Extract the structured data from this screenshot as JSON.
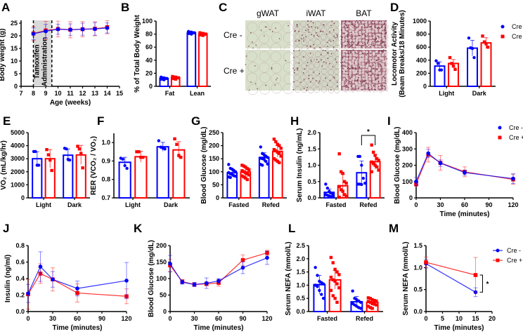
{
  "colors": {
    "cre_minus": "#0000FF",
    "cre_plus": "#FF0000"
  },
  "histology": {
    "panel": "C",
    "columns": [
      "gWAT",
      "iWAT",
      "BAT"
    ],
    "rows": [
      "Cre -",
      "Cre +"
    ]
  },
  "chart_data": [
    {
      "panel": "A",
      "type": "line",
      "xlabel": "Age (weeks)",
      "ylabel": "Body weight (g)",
      "xlim": [
        7,
        15
      ],
      "xticks": [
        7,
        8,
        9,
        10,
        11,
        12,
        13,
        14,
        15
      ],
      "ylim": [
        0,
        25
      ],
      "yticks": [
        0,
        5,
        10,
        15,
        20,
        25
      ],
      "shade": {
        "from": 8,
        "to": 9.5,
        "label": [
          "Tamoxifen",
          "Administration"
        ]
      },
      "x": [
        8,
        9,
        10,
        11,
        12,
        13,
        14
      ],
      "series": [
        {
          "marker": "square",
          "color": "#FF0000",
          "mean": [
            20.9,
            22.1,
            22.7,
            22.4,
            22.6,
            22.8,
            23.4
          ],
          "sd": [
            2.8,
            3.6,
            3.1,
            3.2,
            3.0,
            2.8,
            2.6
          ]
        },
        {
          "marker": "circle",
          "color": "#0000FF",
          "mean": [
            20.8,
            21.8,
            22.6,
            22.4,
            22.6,
            22.7,
            23.1
          ],
          "sd": [
            2.3,
            2.7,
            2.0,
            2.3,
            2.4,
            2.5,
            2.0
          ]
        }
      ]
    },
    {
      "panel": "B",
      "type": "bar",
      "ylabel": "% of Total Body Weight",
      "categories": [
        "Fat",
        "Lean"
      ],
      "ylim": [
        0,
        100
      ],
      "yticks": [
        0,
        20,
        40,
        60,
        80,
        100
      ],
      "series": [
        {
          "marker": "circle",
          "color": "#0000FF",
          "mean": [
            12,
            82
          ],
          "sd": [
            1.5,
            1.3
          ],
          "points": [
            [
              14,
              13,
              13,
              12,
              12,
              11,
              11,
              10
            ],
            [
              84,
              83,
              83,
              82,
              82,
              81,
              81,
              80
            ]
          ]
        },
        {
          "marker": "square",
          "color": "#FF0000",
          "mean": [
            13,
            80
          ],
          "sd": [
            1.5,
            1.5
          ],
          "points": [
            [
              15,
              14,
              14,
              13,
              13,
              12,
              12,
              11
            ],
            [
              82,
              81,
              81,
              80,
              80,
              79,
              79,
              78
            ]
          ]
        }
      ]
    },
    {
      "panel": "D",
      "type": "bar",
      "ylabel": "Locomotor Activity",
      "ylabel2": "(Beam Breaks/18 Minutes)",
      "categories": [
        "Light",
        "Dark"
      ],
      "ylim": [
        0,
        1000
      ],
      "yticks": [
        0,
        200,
        400,
        600,
        800,
        1000
      ],
      "legend": "marker",
      "series": [
        {
          "name": "Cre -",
          "marker": "circle",
          "color": "#0000FF",
          "mean": [
            310,
            585
          ],
          "sd": [
            65,
            120
          ],
          "points": [
            [
              390,
              350,
              250,
              250
            ],
            [
              740,
              590,
              580,
              440
            ]
          ]
        },
        {
          "name": "Cre +",
          "marker": "square",
          "color": "#FF0000",
          "mean": [
            350,
            665
          ],
          "sd": [
            60,
            80
          ],
          "points": [
            [
              440,
              350,
              310,
              260
            ],
            [
              770,
              680,
              650,
              600
            ]
          ]
        }
      ]
    },
    {
      "panel": "E",
      "type": "bar",
      "ylabel": "VO₂ (mL/kg/hr)",
      "categories": [
        "Light",
        "Dark"
      ],
      "ylim": [
        0,
        5000
      ],
      "yticks": [
        0,
        1000,
        2000,
        3000,
        4000,
        5000
      ],
      "series": [
        {
          "marker": "circle",
          "color": "#0000FF",
          "mean": [
            3000,
            3270
          ],
          "sd": [
            530,
            480
          ],
          "points": [
            [
              3550,
              3550,
              2500,
              2500
            ],
            [
              3800,
              3750,
              2950,
              2900
            ]
          ]
        },
        {
          "marker": "square",
          "color": "#FF0000",
          "mean": [
            3000,
            3290
          ],
          "sd": [
            700,
            730
          ],
          "points": [
            [
              3700,
              3300,
              2900,
              2100
            ],
            [
              3950,
              3750,
              3400,
              2300
            ]
          ]
        }
      ]
    },
    {
      "panel": "F",
      "type": "bar",
      "ylabel": "RER (VCO₂ / VO₂)",
      "categories": [
        "Light",
        "Dark"
      ],
      "ylim": [
        0.7,
        1.05
      ],
      "yticks": [
        0.7,
        0.8,
        0.9,
        1.0
      ],
      "tickdec": 1,
      "series": [
        {
          "marker": "circle",
          "color": "#0000FF",
          "mean": [
            0.893,
            0.977
          ],
          "sd": [
            0.027,
            0.024
          ],
          "points": [
            [
              0.915,
              0.91,
              0.875,
              0.86
            ],
            [
              1.01,
              0.975,
              0.97,
              0.965
            ]
          ]
        },
        {
          "marker": "square",
          "color": "#FF0000",
          "mean": [
            0.923,
            0.96
          ],
          "sd": [
            0.03,
            0.045
          ],
          "points": [
            [
              0.95,
              0.95,
              0.92,
              0.92
            ],
            [
              1.02,
              0.99,
              0.93,
              0.92
            ]
          ]
        }
      ]
    },
    {
      "panel": "G",
      "type": "bar",
      "ylabel": "Blood Glucose (mg/dL)",
      "categories": [
        "Fasted",
        "Refed"
      ],
      "ylim": [
        0,
        250
      ],
      "yticks": [
        0,
        50,
        100,
        150,
        200,
        250
      ],
      "series": [
        {
          "marker": "circle",
          "color": "#0000FF",
          "mean": [
            96,
            155
          ],
          "sd": [
            15,
            18
          ],
          "points": [
            [
              128,
              113,
              110,
              105,
              100,
              97,
              92,
              90,
              85,
              83,
              80,
              78
            ],
            [
              195,
              170,
              165,
              160,
              155,
              152,
              150,
              148,
              140,
              130,
              128,
              125
            ]
          ]
        },
        {
          "marker": "square",
          "color": "#FF0000",
          "mean": [
            99,
            178
          ],
          "sd": [
            17,
            22
          ],
          "points": [
            [
              125,
              122,
              118,
              112,
              108,
              104,
              100,
              96,
              92,
              88,
              84,
              80,
              76,
              70
            ],
            [
              225,
              215,
              205,
              200,
              190,
              185,
              180,
              175,
              170,
              160,
              150,
              145,
              140,
              135
            ]
          ]
        }
      ]
    },
    {
      "panel": "H",
      "type": "bar",
      "ylabel": "Serum Insulin (ng/mL)",
      "categories": [
        "Fasted",
        "Refed"
      ],
      "ylim": [
        0,
        2
      ],
      "yticks": [
        0,
        0.5,
        1.0,
        1.5,
        2.0
      ],
      "tickdec": 1,
      "significance": {
        "category": 1,
        "label": "*"
      },
      "series": [
        {
          "marker": "circle",
          "color": "#0000FF",
          "mean": [
            0.17,
            0.77
          ],
          "sd": [
            0.1,
            0.36
          ],
          "points": [
            [
              0.42,
              0.3,
              0.2,
              0.15,
              0.12,
              0.1,
              0.08,
              0.05,
              0.04,
              0.03
            ],
            [
              1.27,
              1.27,
              1.0,
              0.6,
              0.45,
              0.42,
              0.42,
              0.41
            ]
          ]
        },
        {
          "marker": "square",
          "color": "#FF0000",
          "mean": [
            0.37,
            1.11
          ],
          "sd": [
            0.35,
            0.22
          ],
          "points": [
            [
              1.35,
              0.8,
              0.75,
              0.5,
              0.45,
              0.35,
              0.25,
              0.2,
              0.1,
              0.05,
              0.02
            ],
            [
              1.62,
              1.4,
              1.3,
              1.2,
              1.15,
              1.1,
              1.05,
              1.0,
              0.95,
              0.85,
              0.8
            ]
          ]
        }
      ]
    },
    {
      "panel": "I",
      "type": "line",
      "xlabel": "Time (minutes)",
      "ylabel": "Blood Glucose (mg/dL)",
      "xlim": [
        0,
        120
      ],
      "xticks": [
        0,
        30,
        60,
        90,
        120
      ],
      "ylim": [
        0,
        400
      ],
      "yticks": [
        0,
        100,
        200,
        300,
        400
      ],
      "legend": "marker",
      "x": [
        0,
        15,
        30,
        60,
        120
      ],
      "series": [
        {
          "name": "Cre +",
          "marker": "square",
          "color": "#FF0000",
          "mean": [
            85,
            265,
            215,
            160,
            113
          ],
          "sd": [
            15,
            45,
            45,
            30,
            30
          ]
        },
        {
          "name": "Cre -",
          "marker": "circle",
          "color": "#0000FF",
          "mean": [
            100,
            273,
            213,
            155,
            118
          ],
          "sd": [
            25,
            25,
            20,
            15,
            30
          ]
        }
      ]
    },
    {
      "panel": "J",
      "type": "line",
      "xlabel": "Time (minutes)",
      "ylabel": "Insulin (ng/ml)",
      "xlim": [
        0,
        120
      ],
      "xticks": [
        0,
        30,
        60,
        90,
        120
      ],
      "ylim": [
        0,
        0.8
      ],
      "yticks": [
        0,
        0.2,
        0.4,
        0.6,
        0.8
      ],
      "tickdec": 1,
      "x": [
        0,
        15,
        30,
        60,
        120
      ],
      "series": [
        {
          "marker": "square",
          "color": "#FF0000",
          "mean": [
            0.21,
            0.46,
            0.39,
            0.225,
            0.185
          ],
          "sd": [
            0.18,
            0.12,
            0.14,
            0.11,
            0.09
          ]
        },
        {
          "marker": "circle",
          "color": "#0000FF",
          "mean": [
            0.22,
            0.545,
            0.39,
            0.28,
            0.375
          ],
          "sd": [
            0.11,
            0.18,
            0.095,
            0.09,
            0.22
          ]
        }
      ]
    },
    {
      "panel": "K",
      "type": "line",
      "xlabel": "Time (minutes)",
      "ylabel": "Blood Glucose (mg/dL)",
      "xlim": [
        0,
        120
      ],
      "xticks": [
        0,
        30,
        60,
        90,
        120
      ],
      "ylim": [
        0,
        200
      ],
      "yticks": [
        0,
        50,
        100,
        150,
        200
      ],
      "x": [
        0,
        15,
        30,
        45,
        60,
        90,
        120
      ],
      "series": [
        {
          "marker": "square",
          "color": "#FF0000",
          "mean": [
            140,
            91,
            82,
            84,
            87,
            156,
            178
          ],
          "sd": [
            18,
            6,
            6,
            6,
            10,
            16,
            8
          ]
        },
        {
          "marker": "circle",
          "color": "#0000FF",
          "mean": [
            145,
            89,
            82,
            86,
            93,
            133,
            163
          ],
          "sd": [
            25,
            6,
            6,
            16,
            7,
            18,
            20
          ]
        }
      ]
    },
    {
      "panel": "L",
      "type": "bar",
      "ylabel": "Serum NEFA (mmol/L)",
      "categories": [
        "Fasted",
        "Refed"
      ],
      "ylim": [
        0,
        2.5
      ],
      "yticks": [
        0,
        0.5,
        1.0,
        1.5,
        2.0,
        2.5
      ],
      "tickdec": 1,
      "series": [
        {
          "marker": "circle",
          "color": "#0000FF",
          "mean": [
            1.02,
            0.37
          ],
          "sd": [
            0.35,
            0.2
          ],
          "points": [
            [
              1.67,
              1.37,
              1.15,
              1.1,
              1.05,
              1.0,
              0.95,
              0.8,
              0.65,
              0.5
            ],
            [
              0.78,
              0.5,
              0.45,
              0.4,
              0.35,
              0.3,
              0.25,
              0.2,
              0.15,
              0.12
            ]
          ]
        },
        {
          "marker": "square",
          "color": "#FF0000",
          "mean": [
            1.2,
            0.35
          ],
          "sd": [
            0.35,
            0.1
          ],
          "points": [
            [
              2.05,
              1.85,
              1.6,
              1.5,
              1.4,
              1.3,
              1.2,
              1.15,
              1.05,
              0.9,
              0.8,
              0.6,
              0.5,
              0.35
            ],
            [
              0.52,
              0.5,
              0.45,
              0.42,
              0.4,
              0.38,
              0.35,
              0.3,
              0.28,
              0.25,
              0.2,
              0.15,
              0.12
            ]
          ]
        }
      ]
    },
    {
      "panel": "M",
      "type": "line",
      "xlabel": "Time (minutes)",
      "ylabel": "Serum NEFA (mmol/L)",
      "xlim": [
        0,
        20
      ],
      "xticks": [
        0,
        5,
        10,
        15,
        20
      ],
      "ylim": [
        0,
        1.5
      ],
      "yticks": [
        0,
        0.5,
        1.0,
        1.5
      ],
      "tickdec": 1,
      "legend": "line",
      "significance": {
        "x": 15,
        "label": "*"
      },
      "x": [
        0,
        15
      ],
      "series": [
        {
          "name": "Cre -",
          "marker": "circle",
          "color": "#0000FF",
          "mean": [
            1.09,
            0.44
          ],
          "sd": [
            0.1,
            0.1
          ]
        },
        {
          "name": "Cre +",
          "marker": "square",
          "color": "#FF0000",
          "mean": [
            1.12,
            0.83
          ],
          "sd": [
            0.12,
            0.4
          ]
        }
      ]
    }
  ]
}
